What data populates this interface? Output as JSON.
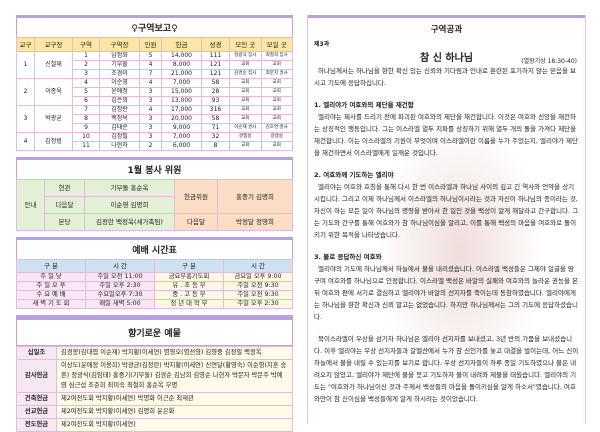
{
  "district": {
    "title": "구역보고",
    "headers": [
      "교구",
      "교구장",
      "구역",
      "구역장",
      "인원",
      "헌금",
      "성경",
      "모인 곳",
      "모일 곳"
    ],
    "groups": [
      {
        "gyogu": "1",
        "leader": "신철재",
        "rows": [
          [
            "1",
            "남정화",
            "5",
            "14,000",
            "111",
            "정광식 집사",
            "최철희 집사"
          ],
          [
            "2",
            "기부돌",
            "4",
            "8,000",
            "121",
            "교회",
            "교회"
          ],
          [
            "3",
            "조경이",
            "7",
            "21,000",
            "121",
            "김경순 집사",
            "최분지 권사"
          ]
        ]
      },
      {
        "gyogu": "2",
        "leader": "이종욱",
        "rows": [
          [
            "4",
            "이순영",
            "4",
            "7,000",
            "58",
            "교회",
            "교회"
          ],
          [
            "5",
            "윤애정",
            "3",
            "15,000",
            "28",
            "교회",
            "교회"
          ],
          [
            "6",
            "김은희",
            "3",
            "13,000",
            "93",
            "교회",
            "교회"
          ]
        ]
      },
      {
        "gyogu": "3",
        "leader": "박광균",
        "rows": [
          [
            "7",
            "김정란",
            "4",
            "17,000",
            "316",
            "교회",
            "교회"
          ],
          [
            "8",
            "백정옥",
            "3",
            "20,000",
            "58",
            "교회",
            "교회"
          ],
          [
            "9",
            "김태순",
            "3",
            "9,000",
            "71",
            "이순재 권사",
            "김호연 권사"
          ]
        ]
      },
      {
        "gyogu": "4",
        "leader": "김정범",
        "rows": [
          [
            "10",
            "김정필",
            "3",
            "7,000",
            "32",
            "갈렙실",
            "갈렙실"
          ],
          [
            "11",
            "나현자",
            "2",
            "6,000",
            "8",
            "교회",
            "교회"
          ]
        ]
      }
    ]
  },
  "volunteers": {
    "title": "1월 봉사 위원",
    "guide": "안내",
    "r1": [
      "현관",
      "기부돌 홍순옥"
    ],
    "r2": [
      "다음달",
      "이순영 김명희"
    ],
    "r3": [
      "본당",
      "김정란 백정옥(세가족팀)"
    ],
    "offering_label": "헌금위원",
    "offering_names": "홍중기 김명희",
    "next_label": "다음달",
    "next_names": "박정달 정영희"
  },
  "worship": {
    "title": "예배 시간표",
    "headers": [
      "구 분",
      "시 간",
      "구 분",
      "시 간"
    ],
    "rows": [
      [
        "주 일 낮",
        "주일 오전 11:00",
        "금요부흥기도회",
        "금요일 오후 9:00"
      ],
      [
        "주 일 오 후",
        "주일 오후 2:30",
        "유 . 초 등 부",
        "주일 오전 9:30"
      ],
      [
        "수 요 예 배",
        "수요일오후 7:30",
        "중 . 고 등 부",
        "주일 오전 9:30"
      ],
      [
        "새 벽 기 도 회",
        "매일 새벽 5:00",
        "청 년 대 학 부",
        "주일 오후 2:30"
      ]
    ]
  },
  "offerings": {
    "title": "향기로운 예물",
    "rows": [
      {
        "label": "십일조",
        "text": "김경봉(김대엽 이순재) 박지황(이세연) 염영오(염선영) 김영중 김정필 백정옥"
      },
      {
        "label": "감사헌금",
        "text": "이상도(윤애정 이용희) 박광균(김정란) 박지황(이세연) 신연달(황영숙) 이순영(지훈 승훈) 정광식(김임태) 홍중기(기부돌) 김경순 김남희 김영순 나현자 박문자 박문주 박예영 심근섭 조춘희 최미숙 최철희 홍순옥 무명"
      },
      {
        "label": "건축헌금",
        "text": "제2여전도회 박지황(이세연) 박명화 이근순 최재관"
      },
      {
        "label": "선교헌금",
        "text": "제2여전도회 박지황(이세연) 김명희 윤은화"
      },
      {
        "label": "전도헌금",
        "text": "제2여전도회 박지황(이세연)"
      }
    ]
  },
  "lesson": {
    "title": "구역공과",
    "number": "제3과",
    "subject": "참 신 하나님",
    "reference": "(열왕기상 18:30-40)",
    "intro": "하나님께서는 하나님을 향한 확신 있는 신뢰와 기다림과 인내로 훈련된 포기하지 않는 믿음을 보시고 기도에 응답하십니다.",
    "sections": [
      {
        "heading": "1. 엘리야가 여호와의 제단을 재건함",
        "body": "엘리야는 제사를 드리기 전에 파괴된 여호와의 제단을 재건합니다. 이것은 여호와 신앙을 재건하는 상징적인 행동입니다. 그는 이스라엘 열두 지파를 상징하기 위해 열두 개의 돌을 가져다 제단을 재건합니다. 이는 이스라엘의 기원이 무엇이며 이스라엘이란 이름을 누가 주었는지, 엘리야가 제단을 재건하면서 이스라엘에게 일깨운 것입니다."
      },
      {
        "heading": "2. 여호와께 기도하는 엘리야",
        "body": "엘리야는 여호와 호칭을 통해 다시 한 번 이스라엘과 하나님 사이의 깊고 긴 역사와 언약을 상기시킵니다. 그리고 이제 하나님께서 이스라엘의 하나님이시라는 것과 자신이 하나님의 종이라는 것, 자신이 하는 모든 일이 하나님의 명령을 받아서 한 일인 것을 백성이 알게 해달라고 간구합니다. 그는 기도와 간구를 통해 여호와가 참 하나님이심을 알리고, 이를 통해 백성의 마음을 여호와로 돌이키기 위한 목적을 나타냈습니다."
      },
      {
        "heading": "3. 불로 응답하신 여호와",
        "body": "엘리야의 기도에 하나님께서 하늘에서 불을 내리셨습니다. 이스라엘 백성들은 그제야 얼굴을 땅구며 여호와를 하나님으로 인정합니다. 이스라엘 백성은 바알의 실패와 여호와의 놀라운 권능을 본 뒤 여호와 편에 서기로 결심하고 엘리야가 바알의 선지자를 죽이는데 동참하였습니다. 엘리야에게는 하나님을 향한 확신과 신뢰 말고는 없었습니다. 하지만 하나님께서는 그의 기도에 응답하셨습니다."
      }
    ],
    "closing": "북이스라엘이 우상을 섬기자 하나님은 엘리야 선지자를 보내셨고, 3년 반의 가뭄을 보내셨습니다. 이후 엘리야는 우상 선지자들과 갈멜산에서 누가 참 신인가를 놓고 대결을 벌이는데, 어느 신이 하늘에서 불을 내릴 수 있는지를 보기로 합니다. 우상 선지자들이 하루 종일 기도하였으나 불은 내려오지 않았고, 엘리야가 제단에 물을 붓고 기도하자 불이 내려와 제물을 태웠습니다. 엘리야의 기도는 \"여호와가 하나님이신 것과 주께서 백성들의 마음을 돌이키심을 알게 하소서\"였습니다. 여호와만이 참 신이심을 백성들에게 알게 하시려는 것이었습니다."
  },
  "colors": {
    "accent_bar": "#b9a0e0",
    "table_header": "#fde6a4",
    "green": "#e3f0d5",
    "orange": "#fbdcc4",
    "blue": "#cfe0f1"
  }
}
